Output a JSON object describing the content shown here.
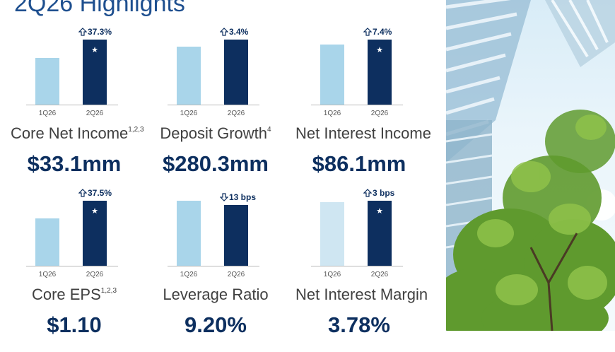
{
  "slide": {
    "title": "2Q26 Highlights"
  },
  "colors": {
    "prior_bar": "#a9d5ea",
    "current_bar": "#0d2f5f",
    "title": "#1e4f8f"
  },
  "panels": [
    {
      "id": "core-net-income",
      "label": "Core Net Income",
      "footnote": "1,2,3",
      "value": "$33.1mm",
      "delta_text": "37.3%",
      "delta_icon": "arrow-up-icon",
      "categories": [
        "1Q26",
        "2Q26"
      ],
      "bar_values": [
        0.72,
        1.0
      ],
      "star": true
    },
    {
      "id": "deposit-growth",
      "label": "Deposit Growth",
      "footnote": "4",
      "value": "$280.3mm",
      "delta_text": "3.4%",
      "delta_icon": "arrow-up-icon",
      "categories": [
        "1Q26",
        "2Q26"
      ],
      "bar_values": [
        0.89,
        1.0
      ],
      "star": false
    },
    {
      "id": "net-interest-income",
      "label": "Net Interest Income",
      "footnote": "",
      "value": "$86.1mm",
      "delta_text": "7.4%",
      "delta_icon": "arrow-up-icon",
      "categories": [
        "1Q26",
        "2Q26"
      ],
      "bar_values": [
        0.92,
        1.0
      ],
      "star": true
    },
    {
      "id": "core-eps",
      "label": "Core EPS",
      "footnote": "1,2,3",
      "value": "$1.10",
      "delta_text": "37.5%",
      "delta_icon": "arrow-up-icon",
      "categories": [
        "1Q26",
        "2Q26"
      ],
      "bar_values": [
        0.73,
        1.0
      ],
      "star": true
    },
    {
      "id": "leverage-ratio",
      "label": "Leverage Ratio",
      "footnote": "",
      "value": "9.20%",
      "delta_text": "13 bps",
      "delta_icon": "arrow-down-icon",
      "categories": [
        "1Q26",
        "2Q26"
      ],
      "bar_values": [
        1.0,
        0.93
      ],
      "star": false
    },
    {
      "id": "net-interest-margin",
      "label": "Net Interest Margin",
      "footnote": "",
      "value": "3.78%",
      "delta_text": "3 bps",
      "delta_icon": "arrow-up-icon",
      "categories": [
        "1Q26",
        "2Q26"
      ],
      "bar_values": [
        0.98,
        1.0
      ],
      "star": true
    }
  ],
  "photo": {
    "subject": "glass-building-with-trees-image"
  }
}
